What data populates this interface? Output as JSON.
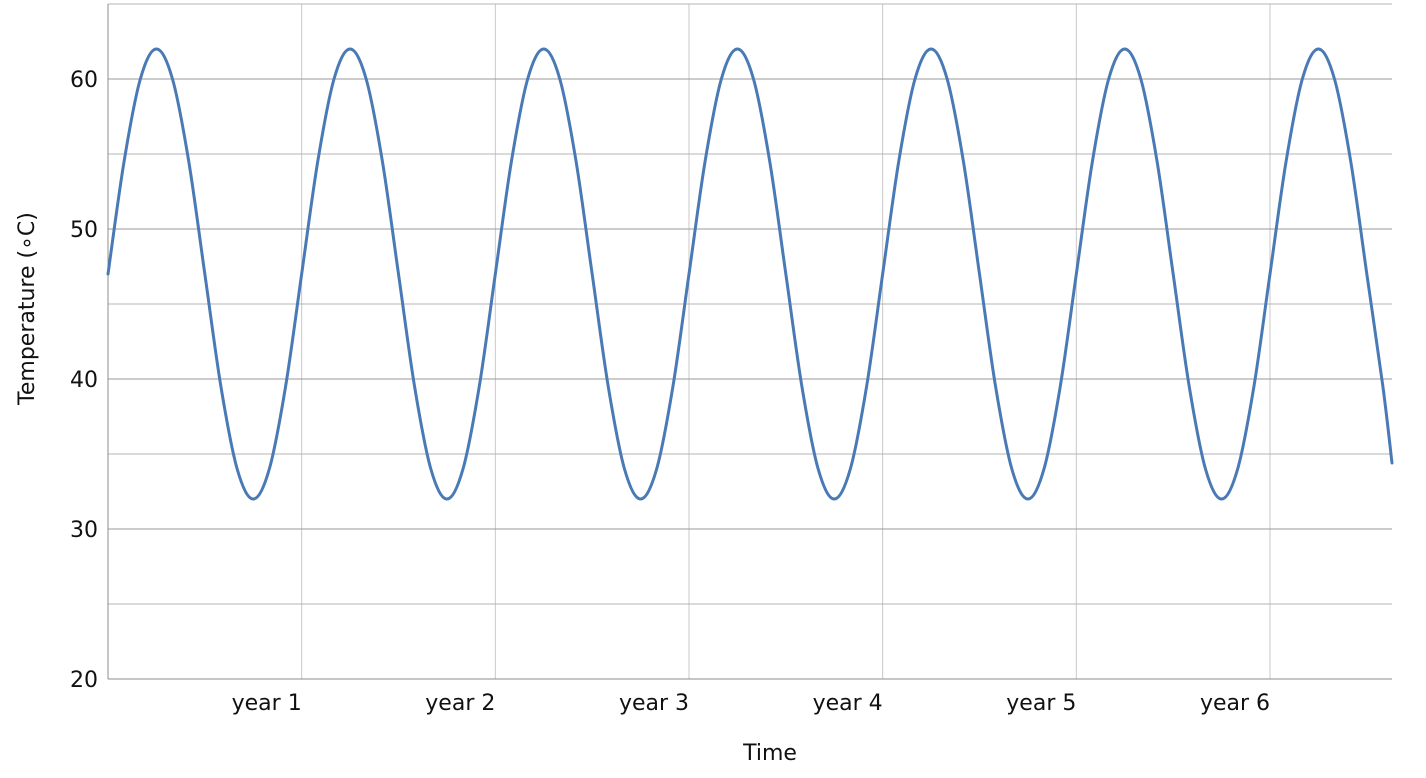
{
  "chart_data": {
    "type": "line",
    "title": "",
    "xlabel": "Time",
    "ylabel": "Temperature (∘C)",
    "ylim": [
      20,
      65
    ],
    "xlim": [
      0,
      6.63
    ],
    "y_major_ticks": [
      20,
      30,
      40,
      50,
      60
    ],
    "y_minor_ticks": [
      25,
      35,
      45,
      55,
      65
    ],
    "x_ticks": [
      {
        "value": 1,
        "label": "year 1"
      },
      {
        "value": 2,
        "label": "year 2"
      },
      {
        "value": 3,
        "label": "year 3"
      },
      {
        "value": 4,
        "label": "year 4"
      },
      {
        "value": 5,
        "label": "year 5"
      },
      {
        "value": 6,
        "label": "year 6"
      }
    ],
    "grid": true,
    "series": [
      {
        "color": "#4a7ab5",
        "x": [
          0,
          0.083,
          0.167,
          0.25,
          0.333,
          0.417,
          0.5,
          0.583,
          0.667,
          0.75,
          0.833,
          0.917,
          1.0,
          1.083,
          1.167,
          1.25,
          1.333,
          1.417,
          1.5,
          1.583,
          1.667,
          1.75,
          1.833,
          1.917,
          2.0,
          2.083,
          2.167,
          2.25,
          2.333,
          2.417,
          2.5,
          2.583,
          2.667,
          2.75,
          2.833,
          2.917,
          3.0,
          3.083,
          3.167,
          3.25,
          3.333,
          3.417,
          3.5,
          3.583,
          3.667,
          3.75,
          3.833,
          3.917,
          4.0,
          4.083,
          4.167,
          4.25,
          4.333,
          4.417,
          4.5,
          4.583,
          4.667,
          4.75,
          4.833,
          4.917,
          5.0,
          5.083,
          5.167,
          5.25,
          5.333,
          5.417,
          5.5,
          5.583,
          5.667,
          5.75,
          5.833,
          5.917,
          6.0,
          6.083,
          6.167,
          6.25,
          6.333,
          6.417,
          6.5,
          6.583,
          6.63
        ],
        "y": [
          47.0,
          54.5,
          60.0,
          62.0,
          60.0,
          54.5,
          47.0,
          39.5,
          34.0,
          32.0,
          34.0,
          39.5,
          47.0,
          54.5,
          60.0,
          62.0,
          60.0,
          54.5,
          47.0,
          39.5,
          34.0,
          32.0,
          34.0,
          39.5,
          47.0,
          54.5,
          60.0,
          62.0,
          60.0,
          54.5,
          47.0,
          39.5,
          34.0,
          32.0,
          34.0,
          39.5,
          47.0,
          54.5,
          60.0,
          62.0,
          60.0,
          54.5,
          47.0,
          39.5,
          34.0,
          32.0,
          34.0,
          39.5,
          47.0,
          54.5,
          60.0,
          62.0,
          60.0,
          54.5,
          47.0,
          39.5,
          34.0,
          32.0,
          34.0,
          39.5,
          47.0,
          54.5,
          60.0,
          62.0,
          60.0,
          54.5,
          47.0,
          39.5,
          34.0,
          32.0,
          34.0,
          39.5,
          47.0,
          54.5,
          60.0,
          62.0,
          60.0,
          54.5,
          47.0,
          39.5,
          34.4
        ]
      }
    ]
  }
}
